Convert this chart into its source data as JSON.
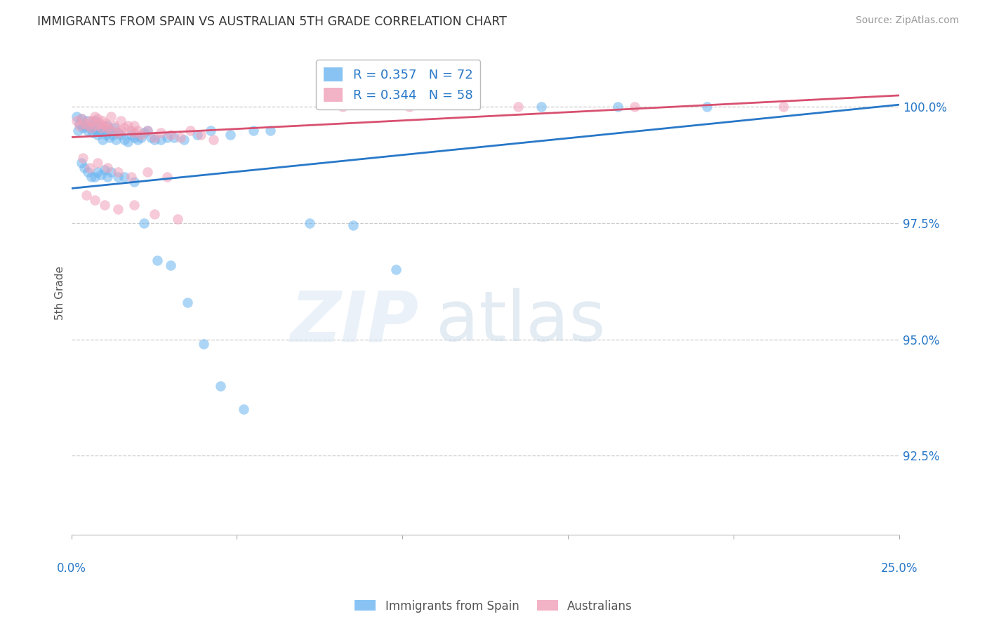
{
  "title": "IMMIGRANTS FROM SPAIN VS AUSTRALIAN 5TH GRADE CORRELATION CHART",
  "source": "Source: ZipAtlas.com",
  "ylabel": "5th Grade",
  "yticks": [
    92.5,
    95.0,
    97.5,
    100.0
  ],
  "ytick_labels": [
    "92.5%",
    "95.0%",
    "97.5%",
    "100.0%"
  ],
  "xlim": [
    0.0,
    25.0
  ],
  "ylim": [
    90.8,
    101.2
  ],
  "legend1_label": "R = 0.357   N = 72",
  "legend2_label": "R = 0.344   N = 58",
  "blue_color": "#6ab4f0",
  "pink_color": "#f0a0b8",
  "watermark_zip": "ZIP",
  "watermark_atlas": "atlas",
  "blue_line_x0": 0.0,
  "blue_line_x1": 25.0,
  "blue_line_y0": 98.25,
  "blue_line_y1": 100.05,
  "pink_line_x0": 0.0,
  "pink_line_x1": 25.0,
  "pink_line_y0": 99.35,
  "pink_line_y1": 100.25,
  "blue_scatter_x": [
    0.15,
    0.2,
    0.25,
    0.3,
    0.35,
    0.4,
    0.45,
    0.5,
    0.55,
    0.6,
    0.65,
    0.7,
    0.75,
    0.8,
    0.85,
    0.9,
    0.95,
    1.0,
    1.05,
    1.1,
    1.15,
    1.2,
    1.25,
    1.3,
    1.35,
    1.4,
    1.5,
    1.6,
    1.7,
    1.8,
    1.9,
    2.0,
    2.1,
    2.2,
    2.3,
    2.4,
    2.5,
    2.7,
    2.9,
    3.1,
    3.4,
    3.8,
    4.2,
    4.8,
    5.5,
    6.0,
    7.2,
    8.5,
    9.8,
    14.2,
    16.5,
    19.2,
    0.3,
    0.4,
    0.5,
    0.6,
    0.7,
    0.8,
    0.9,
    1.0,
    1.1,
    1.2,
    1.4,
    1.6,
    1.9,
    2.2,
    2.6,
    3.0,
    3.5,
    4.0,
    4.5,
    5.2
  ],
  "blue_scatter_y": [
    99.8,
    99.5,
    99.65,
    99.75,
    99.55,
    99.6,
    99.7,
    99.5,
    99.55,
    99.6,
    99.45,
    99.7,
    99.5,
    99.4,
    99.6,
    99.5,
    99.3,
    99.5,
    99.4,
    99.6,
    99.35,
    99.5,
    99.4,
    99.55,
    99.3,
    99.45,
    99.4,
    99.3,
    99.25,
    99.4,
    99.35,
    99.3,
    99.35,
    99.45,
    99.5,
    99.35,
    99.3,
    99.3,
    99.35,
    99.35,
    99.3,
    99.4,
    99.5,
    99.4,
    99.5,
    99.5,
    97.5,
    97.45,
    96.5,
    100.0,
    100.0,
    100.0,
    98.8,
    98.7,
    98.6,
    98.5,
    98.5,
    98.6,
    98.55,
    98.65,
    98.5,
    98.6,
    98.5,
    98.5,
    98.4,
    97.5,
    96.7,
    96.6,
    95.8,
    94.9,
    94.0,
    93.5
  ],
  "pink_scatter_x": [
    0.15,
    0.25,
    0.3,
    0.4,
    0.5,
    0.55,
    0.6,
    0.65,
    0.7,
    0.75,
    0.8,
    0.85,
    0.9,
    0.95,
    1.0,
    1.05,
    1.1,
    1.2,
    1.3,
    1.4,
    1.5,
    1.6,
    1.7,
    1.8,
    1.9,
    2.0,
    2.1,
    2.3,
    2.5,
    2.7,
    3.0,
    3.3,
    3.6,
    3.9,
    4.3,
    0.35,
    0.55,
    0.8,
    1.1,
    1.4,
    1.8,
    2.3,
    2.9,
    0.45,
    0.7,
    1.0,
    1.4,
    1.9,
    2.5,
    3.2,
    8.2,
    10.2,
    13.5,
    17.0,
    21.5,
    1.2,
    1.5,
    1.9
  ],
  "pink_scatter_y": [
    99.7,
    99.6,
    99.75,
    99.65,
    99.6,
    99.7,
    99.55,
    99.7,
    99.8,
    99.6,
    99.75,
    99.65,
    99.55,
    99.7,
    99.6,
    99.65,
    99.55,
    99.5,
    99.6,
    99.45,
    99.5,
    99.55,
    99.6,
    99.5,
    99.45,
    99.5,
    99.4,
    99.5,
    99.35,
    99.45,
    99.4,
    99.35,
    99.5,
    99.4,
    99.3,
    98.9,
    98.7,
    98.8,
    98.7,
    98.6,
    98.5,
    98.6,
    98.5,
    98.1,
    98.0,
    97.9,
    97.8,
    97.9,
    97.7,
    97.6,
    100.0,
    100.0,
    100.0,
    100.0,
    100.0,
    99.8,
    99.7,
    99.6
  ]
}
